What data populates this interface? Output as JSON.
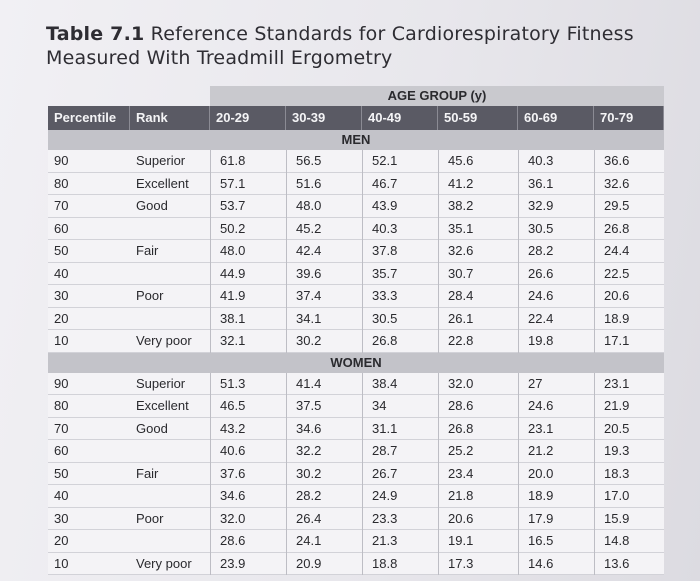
{
  "title": {
    "label": "Table 7.1",
    "text": "Reference Standards for Cardiorespiratory Fitness",
    "line2": "Measured With Treadmill Ergometry"
  },
  "age_group_label": "AGE GROUP (y)",
  "columns": [
    "Percentile",
    "Rank",
    "20-29",
    "30-39",
    "40-49",
    "50-59",
    "60-69",
    "70-79"
  ],
  "sections": [
    {
      "name": "MEN",
      "rows": [
        [
          "90",
          "Superior",
          "61.8",
          "56.5",
          "52.1",
          "45.6",
          "40.3",
          "36.6"
        ],
        [
          "80",
          "Excellent",
          "57.1",
          "51.6",
          "46.7",
          "41.2",
          "36.1",
          "32.6"
        ],
        [
          "70",
          "Good",
          "53.7",
          "48.0",
          "43.9",
          "38.2",
          "32.9",
          "29.5"
        ],
        [
          "60",
          "",
          "50.2",
          "45.2",
          "40.3",
          "35.1",
          "30.5",
          "26.8"
        ],
        [
          "50",
          "Fair",
          "48.0",
          "42.4",
          "37.8",
          "32.6",
          "28.2",
          "24.4"
        ],
        [
          "40",
          "",
          "44.9",
          "39.6",
          "35.7",
          "30.7",
          "26.6",
          "22.5"
        ],
        [
          "30",
          "Poor",
          "41.9",
          "37.4",
          "33.3",
          "28.4",
          "24.6",
          "20.6"
        ],
        [
          "20",
          "",
          "38.1",
          "34.1",
          "30.5",
          "26.1",
          "22.4",
          "18.9"
        ],
        [
          "10",
          "Very poor",
          "32.1",
          "30.2",
          "26.8",
          "22.8",
          "19.8",
          "17.1"
        ]
      ]
    },
    {
      "name": "WOMEN",
      "rows": [
        [
          "90",
          "Superior",
          "51.3",
          "41.4",
          "38.4",
          "32.0",
          "27",
          "23.1"
        ],
        [
          "80",
          "Excellent",
          "46.5",
          "37.5",
          "34",
          "28.6",
          "24.6",
          "21.9"
        ],
        [
          "70",
          "Good",
          "43.2",
          "34.6",
          "31.1",
          "26.8",
          "23.1",
          "20.5"
        ],
        [
          "60",
          "",
          "40.6",
          "32.2",
          "28.7",
          "25.2",
          "21.2",
          "19.3"
        ],
        [
          "50",
          "Fair",
          "37.6",
          "30.2",
          "26.7",
          "23.4",
          "20.0",
          "18.3"
        ],
        [
          "40",
          "",
          "34.6",
          "28.2",
          "24.9",
          "21.8",
          "18.9",
          "17.0"
        ],
        [
          "30",
          "Poor",
          "32.0",
          "26.4",
          "23.3",
          "20.6",
          "17.9",
          "15.9"
        ],
        [
          "20",
          "",
          "28.6",
          "24.1",
          "21.3",
          "19.1",
          "16.5",
          "14.8"
        ],
        [
          "10",
          "Very poor",
          "23.9",
          "20.9",
          "18.8",
          "17.3",
          "14.6",
          "13.6"
        ]
      ]
    }
  ]
}
